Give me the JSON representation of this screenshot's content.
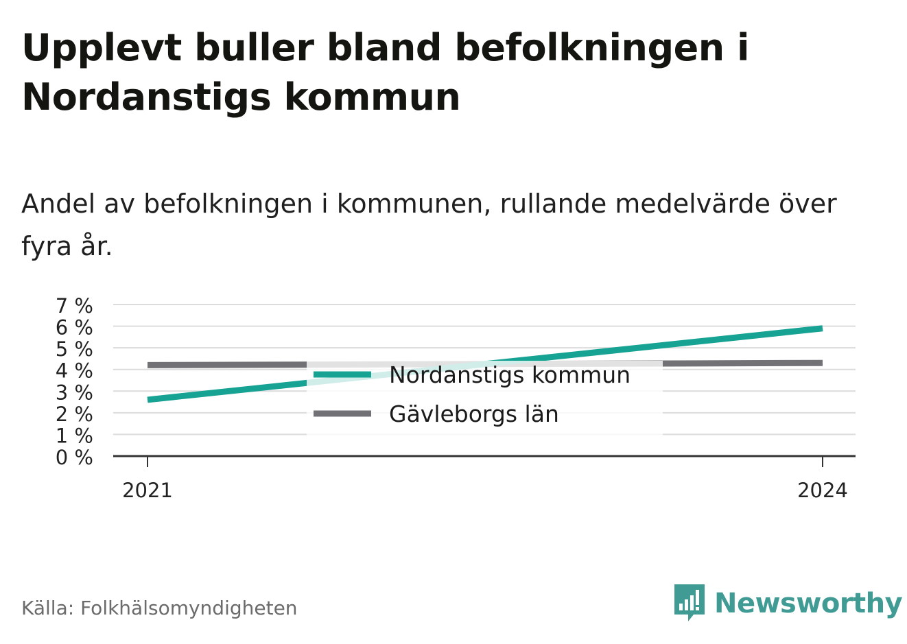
{
  "header": {
    "title": "Upplevt buller bland befolkningen i Nordanstigs kommun",
    "subtitle": "Andel av befolkningen i kommunen, rullande medelvärde över fyra år."
  },
  "footer": {
    "source": "Källa: Folkhälsomyndigheten",
    "brand": "Newsworthy",
    "brand_icon": "newsworthy-logo-icon",
    "brand_color": "#3f9b94"
  },
  "chart_data": {
    "type": "line",
    "x": [
      2021,
      2024
    ],
    "x_tick_labels": [
      "2021",
      "2024"
    ],
    "y_tick_labels": [
      "0 %",
      "1 %",
      "2 %",
      "3 %",
      "4 %",
      "5 %",
      "6 %",
      "7 %"
    ],
    "ylim": [
      0,
      7
    ],
    "grid": true,
    "legend_position": "center",
    "series": [
      {
        "name": "Nordanstigs kommun",
        "values": [
          2.6,
          5.9
        ],
        "color": "#16a394"
      },
      {
        "name": "Gävleborgs län",
        "values": [
          4.2,
          4.3
        ],
        "color": "#727176"
      }
    ]
  }
}
